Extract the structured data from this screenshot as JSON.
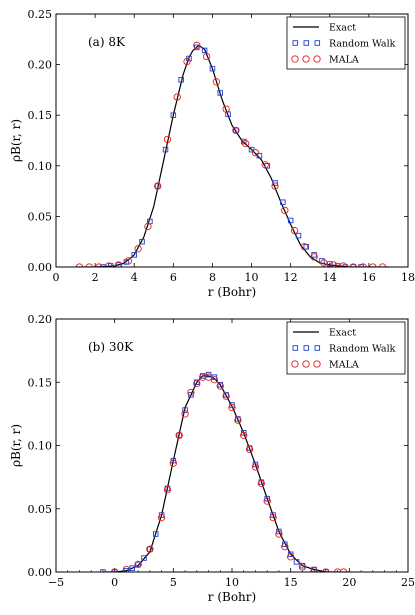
{
  "chart_data": [
    {
      "type": "line",
      "panel_label": "(a) 8K",
      "xlabel": "r (Bohr)",
      "ylabel": "ρB(r, r)",
      "xlim": [
        0,
        18
      ],
      "ylim": [
        0,
        0.25
      ],
      "xticks": [
        0,
        2,
        4,
        6,
        8,
        10,
        12,
        14,
        16,
        18
      ],
      "yticks": [
        0.0,
        0.05,
        0.1,
        0.15,
        0.2,
        0.25
      ],
      "xtick_labels": [
        "0",
        "2",
        "4",
        "6",
        "8",
        "10",
        "12",
        "14",
        "16",
        "18"
      ],
      "ytick_labels": [
        "0.00",
        "0.05",
        "0.10",
        "0.15",
        "0.20",
        "0.25"
      ],
      "legend_position": "top-right",
      "series": [
        {
          "name": "Exact",
          "style": "line",
          "color": "#000000",
          "x": [
            1.0,
            2.0,
            3.0,
            3.5,
            4.0,
            4.5,
            5.0,
            5.5,
            6.0,
            6.5,
            6.8,
            7.0,
            7.3,
            7.6,
            8.0,
            8.5,
            9.0,
            9.5,
            10.0,
            10.5,
            11.0,
            11.5,
            12.0,
            12.5,
            13.0,
            13.5,
            14.0,
            15.0,
            16.0,
            17.0
          ],
          "y": [
            0.0,
            0.0,
            0.001,
            0.004,
            0.012,
            0.03,
            0.06,
            0.105,
            0.15,
            0.19,
            0.207,
            0.214,
            0.219,
            0.215,
            0.196,
            0.165,
            0.14,
            0.125,
            0.116,
            0.106,
            0.088,
            0.064,
            0.042,
            0.022,
            0.01,
            0.004,
            0.002,
            0.0,
            0.0,
            0.0
          ]
        },
        {
          "name": "Random Walk",
          "style": "square",
          "color": "#1f3fd0",
          "x": [
            2.4,
            2.8,
            3.2,
            3.6,
            4.0,
            4.4,
            4.8,
            5.2,
            5.6,
            6.0,
            6.4,
            6.8,
            7.2,
            7.6,
            8.0,
            8.4,
            8.8,
            9.2,
            9.6,
            10.0,
            10.4,
            10.8,
            11.2,
            11.6,
            12.0,
            12.4,
            12.8,
            13.2,
            13.6,
            14.0,
            14.4,
            14.8,
            15.2,
            15.6
          ],
          "y": [
            0.0,
            0.001,
            0.002,
            0.005,
            0.012,
            0.025,
            0.045,
            0.08,
            0.116,
            0.15,
            0.185,
            0.206,
            0.217,
            0.214,
            0.196,
            0.172,
            0.151,
            0.135,
            0.124,
            0.116,
            0.11,
            0.1,
            0.083,
            0.064,
            0.046,
            0.031,
            0.02,
            0.012,
            0.006,
            0.003,
            0.001,
            0.0,
            0.0,
            0.0
          ]
        },
        {
          "name": "MALA",
          "style": "circle",
          "color": "#e0201a",
          "x": [
            1.2,
            1.7,
            2.2,
            2.7,
            3.2,
            3.7,
            4.2,
            4.7,
            5.2,
            5.7,
            6.2,
            6.7,
            7.2,
            7.7,
            8.2,
            8.7,
            9.2,
            9.7,
            10.2,
            10.7,
            11.2,
            11.7,
            12.2,
            12.7,
            13.2,
            13.7,
            14.2,
            14.7,
            15.2,
            15.7,
            16.2,
            16.7
          ],
          "y": [
            0.0,
            0.0,
            0.0,
            0.001,
            0.002,
            0.006,
            0.018,
            0.04,
            0.08,
            0.126,
            0.168,
            0.203,
            0.219,
            0.208,
            0.183,
            0.156,
            0.135,
            0.122,
            0.113,
            0.101,
            0.08,
            0.056,
            0.036,
            0.02,
            0.01,
            0.004,
            0.002,
            0.001,
            0.0,
            0.0,
            0.0,
            0.0
          ]
        }
      ]
    },
    {
      "type": "line",
      "panel_label": "(b) 30K",
      "xlabel": "r (Bohr)",
      "ylabel": "ρB(r, r)",
      "xlim": [
        -5,
        25
      ],
      "ylim": [
        0,
        0.2
      ],
      "xticks": [
        -5,
        0,
        5,
        10,
        15,
        20,
        25
      ],
      "yticks": [
        0.0,
        0.05,
        0.1,
        0.15,
        0.2
      ],
      "xtick_labels": [
        "−5",
        "0",
        "5",
        "10",
        "15",
        "20",
        "25"
      ],
      "ytick_labels": [
        "0.00",
        "0.05",
        "0.10",
        "0.15",
        "0.20"
      ],
      "legend_position": "top-right",
      "series": [
        {
          "name": "Exact",
          "style": "line",
          "color": "#000000",
          "x": [
            -1.0,
            0.0,
            1.0,
            2.0,
            3.0,
            4.0,
            5.0,
            6.0,
            7.0,
            7.5,
            8.0,
            8.5,
            9.0,
            10.0,
            11.0,
            12.0,
            13.0,
            14.0,
            15.0,
            16.0,
            17.0,
            18.0,
            19.0,
            20.0
          ],
          "y": [
            0.0,
            0.0,
            0.001,
            0.005,
            0.016,
            0.045,
            0.088,
            0.13,
            0.15,
            0.155,
            0.155,
            0.153,
            0.148,
            0.131,
            0.11,
            0.085,
            0.058,
            0.032,
            0.014,
            0.005,
            0.002,
            0.0,
            0.0,
            0.0
          ]
        },
        {
          "name": "Random Walk",
          "style": "square",
          "color": "#1f3fd0",
          "x": [
            -1.0,
            0.0,
            1.0,
            1.5,
            2.0,
            2.5,
            3.0,
            3.5,
            4.0,
            4.5,
            5.0,
            5.5,
            6.0,
            6.5,
            7.0,
            7.5,
            8.0,
            8.5,
            9.0,
            9.5,
            10.0,
            10.5,
            11.0,
            11.5,
            12.0,
            12.5,
            13.0,
            13.5,
            14.0,
            14.5,
            15.0,
            15.5,
            16.0,
            17.0,
            18.0
          ],
          "y": [
            0.0,
            0.0,
            0.001,
            0.003,
            0.006,
            0.011,
            0.018,
            0.03,
            0.045,
            0.066,
            0.088,
            0.108,
            0.128,
            0.14,
            0.15,
            0.155,
            0.156,
            0.154,
            0.148,
            0.14,
            0.132,
            0.121,
            0.11,
            0.098,
            0.085,
            0.071,
            0.058,
            0.045,
            0.032,
            0.022,
            0.014,
            0.008,
            0.005,
            0.002,
            0.0
          ]
        },
        {
          "name": "MALA",
          "style": "circle",
          "color": "#e0201a",
          "x": [
            0.0,
            1.0,
            2.0,
            3.0,
            4.0,
            4.5,
            5.0,
            5.5,
            6.0,
            6.5,
            7.0,
            7.5,
            8.0,
            8.5,
            9.0,
            9.5,
            10.0,
            10.5,
            11.0,
            11.5,
            12.0,
            12.5,
            13.0,
            13.5,
            14.0,
            14.5,
            15.0,
            16.0,
            17.0,
            18.0,
            19.0,
            19.5
          ],
          "y": [
            0.0,
            0.002,
            0.006,
            0.018,
            0.043,
            0.065,
            0.086,
            0.108,
            0.125,
            0.142,
            0.149,
            0.154,
            0.154,
            0.152,
            0.147,
            0.139,
            0.13,
            0.12,
            0.108,
            0.097,
            0.083,
            0.07,
            0.056,
            0.043,
            0.03,
            0.02,
            0.012,
            0.004,
            0.001,
            0.0,
            0.0,
            0.0
          ]
        }
      ]
    }
  ]
}
